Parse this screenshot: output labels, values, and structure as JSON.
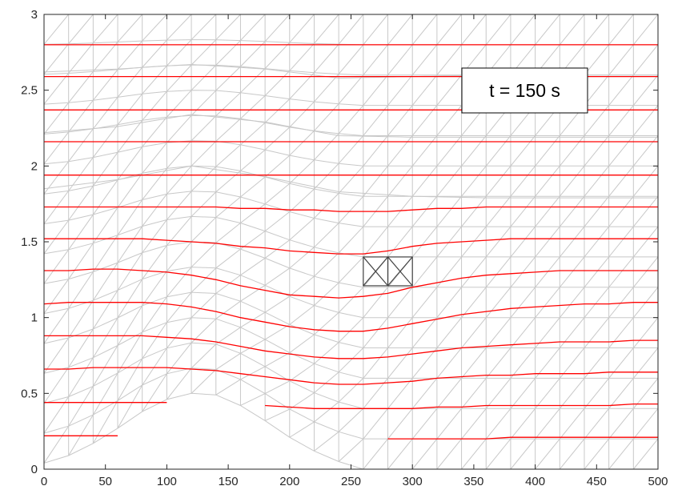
{
  "chart_data": {
    "type": "line",
    "title": "",
    "xlabel": "",
    "ylabel": "",
    "xlim": [
      0,
      500
    ],
    "ylim": [
      0,
      3
    ],
    "x_ticks": [
      0,
      50,
      100,
      150,
      200,
      250,
      300,
      350,
      400,
      450,
      500
    ],
    "y_ticks": [
      0,
      0.5,
      1,
      1.5,
      2,
      2.5,
      3
    ],
    "x_tick_labels": [
      "0",
      "50",
      "100",
      "150",
      "200",
      "250",
      "300",
      "350",
      "400",
      "450",
      "500"
    ],
    "y_tick_labels": [
      "0",
      "0.5",
      "1",
      "1.5",
      "2",
      "2.5",
      "3"
    ],
    "annotation": "t = 150 s",
    "mesh": {
      "color": "#c8c8c8",
      "column_spacing": 20,
      "rows": 15,
      "column_x_values": [
        0,
        20,
        40,
        60,
        80,
        100,
        120,
        140,
        160,
        180,
        200,
        220,
        240,
        260,
        280,
        300,
        320,
        340,
        360,
        380,
        400,
        420,
        440,
        460,
        480,
        500
      ],
      "top": 3,
      "bed_profile": {
        "x": [
          0,
          20,
          40,
          60,
          80,
          100,
          120,
          140,
          160,
          180,
          200,
          220,
          240,
          260,
          280,
          300,
          320,
          340,
          360,
          380,
          400,
          420,
          440,
          460,
          480,
          500
        ],
        "y": [
          0.04,
          0.09,
          0.17,
          0.27,
          0.38,
          0.46,
          0.5,
          0.49,
          0.42,
          0.32,
          0.21,
          0.12,
          0.05,
          0,
          0,
          0,
          0,
          0,
          0,
          0,
          0,
          0,
          0,
          0,
          0,
          0
        ]
      },
      "surface_profiles": [
        {
          "x": [
            0,
            60,
            120,
            180,
            240,
            300,
            360,
            420,
            500
          ],
          "y": [
            2.62,
            2.64,
            2.67,
            2.64,
            2.58,
            2.59,
            2.6,
            2.6,
            2.6
          ]
        },
        {
          "x": [
            0,
            60,
            120,
            180,
            240,
            300,
            360,
            420,
            500
          ],
          "y": [
            2.22,
            2.26,
            2.34,
            2.29,
            2.2,
            2.19,
            2.19,
            2.19,
            2.19
          ]
        },
        {
          "x": [
            0,
            60,
            120,
            180,
            240,
            300,
            360,
            420,
            500
          ],
          "y": [
            1.85,
            1.91,
            2.0,
            1.93,
            1.83,
            1.8,
            1.79,
            1.79,
            1.79
          ]
        }
      ]
    },
    "series": [
      {
        "color": "#ff0000",
        "x": [
          0,
          20,
          40,
          60,
          80,
          100,
          120,
          140,
          160,
          180,
          200,
          220,
          240,
          260,
          280,
          300,
          320,
          340,
          360,
          380,
          400,
          420,
          440,
          460,
          480,
          500
        ],
        "y": [
          0.22,
          0.22,
          0.22,
          0.22,
          null,
          null,
          null,
          null,
          null,
          null,
          null,
          null,
          null,
          null,
          0.2,
          0.2,
          0.2,
          0.2,
          0.2,
          0.21,
          0.21,
          0.21,
          0.21,
          0.21,
          0.21,
          0.21
        ]
      },
      {
        "color": "#ff0000",
        "x": [
          0,
          20,
          40,
          60,
          80,
          100,
          120,
          140,
          160,
          180,
          200,
          220,
          240,
          260,
          280,
          300,
          320,
          340,
          360,
          380,
          400,
          420,
          440,
          460,
          480,
          500
        ],
        "y": [
          0.44,
          0.44,
          0.44,
          0.44,
          0.44,
          0.44,
          null,
          null,
          null,
          0.42,
          0.41,
          0.4,
          0.4,
          0.4,
          0.4,
          0.4,
          0.41,
          0.41,
          0.42,
          0.42,
          0.42,
          0.42,
          0.42,
          0.42,
          0.43,
          0.43
        ]
      },
      {
        "color": "#ff0000",
        "x": [
          0,
          20,
          40,
          60,
          80,
          100,
          120,
          140,
          160,
          180,
          200,
          220,
          240,
          260,
          280,
          300,
          320,
          340,
          360,
          380,
          400,
          420,
          440,
          460,
          480,
          500
        ],
        "y": [
          0.66,
          0.66,
          0.67,
          0.67,
          0.67,
          0.67,
          0.66,
          0.65,
          0.63,
          0.61,
          0.59,
          0.57,
          0.56,
          0.56,
          0.57,
          0.58,
          0.6,
          0.61,
          0.62,
          0.62,
          0.63,
          0.63,
          0.63,
          0.64,
          0.64,
          0.64
        ]
      },
      {
        "color": "#ff0000",
        "x": [
          0,
          20,
          40,
          60,
          80,
          100,
          120,
          140,
          160,
          180,
          200,
          220,
          240,
          260,
          280,
          300,
          320,
          340,
          360,
          380,
          400,
          420,
          440,
          460,
          480,
          500
        ],
        "y": [
          0.88,
          0.88,
          0.88,
          0.88,
          0.88,
          0.87,
          0.86,
          0.84,
          0.81,
          0.78,
          0.76,
          0.74,
          0.73,
          0.73,
          0.74,
          0.76,
          0.78,
          0.8,
          0.81,
          0.82,
          0.83,
          0.84,
          0.84,
          0.84,
          0.85,
          0.85
        ]
      },
      {
        "color": "#ff0000",
        "x": [
          0,
          20,
          40,
          60,
          80,
          100,
          120,
          140,
          160,
          180,
          200,
          220,
          240,
          260,
          280,
          300,
          320,
          340,
          360,
          380,
          400,
          420,
          440,
          460,
          480,
          500
        ],
        "y": [
          1.09,
          1.1,
          1.1,
          1.1,
          1.1,
          1.09,
          1.07,
          1.04,
          1.0,
          0.97,
          0.94,
          0.92,
          0.91,
          0.91,
          0.93,
          0.96,
          0.99,
          1.02,
          1.04,
          1.06,
          1.07,
          1.08,
          1.09,
          1.09,
          1.1,
          1.1
        ]
      },
      {
        "color": "#ff0000",
        "x": [
          0,
          20,
          40,
          60,
          80,
          100,
          120,
          140,
          160,
          180,
          200,
          220,
          240,
          260,
          280,
          300,
          320,
          340,
          360,
          380,
          400,
          420,
          440,
          460,
          480,
          500
        ],
        "y": [
          1.31,
          1.31,
          1.32,
          1.32,
          1.31,
          1.3,
          1.28,
          1.25,
          1.21,
          1.18,
          1.15,
          1.14,
          1.13,
          1.14,
          1.16,
          1.2,
          1.23,
          1.26,
          1.28,
          1.29,
          1.3,
          1.31,
          1.31,
          1.31,
          1.31,
          1.31
        ]
      },
      {
        "color": "#ff0000",
        "x": [
          0,
          20,
          40,
          60,
          80,
          100,
          120,
          140,
          160,
          180,
          200,
          220,
          240,
          260,
          280,
          300,
          320,
          340,
          360,
          380,
          400,
          420,
          440,
          460,
          480,
          500
        ],
        "y": [
          1.52,
          1.52,
          1.52,
          1.52,
          1.52,
          1.51,
          1.5,
          1.49,
          1.47,
          1.46,
          1.44,
          1.43,
          1.42,
          1.42,
          1.44,
          1.47,
          1.49,
          1.5,
          1.51,
          1.52,
          1.52,
          1.52,
          1.52,
          1.52,
          1.52,
          1.52
        ]
      },
      {
        "color": "#ff0000",
        "x": [
          0,
          20,
          40,
          60,
          80,
          100,
          120,
          140,
          160,
          180,
          200,
          220,
          240,
          260,
          280,
          300,
          320,
          340,
          360,
          380,
          400,
          420,
          440,
          460,
          480,
          500
        ],
        "y": [
          1.73,
          1.73,
          1.73,
          1.73,
          1.73,
          1.73,
          1.73,
          1.73,
          1.72,
          1.72,
          1.71,
          1.71,
          1.7,
          1.7,
          1.7,
          1.71,
          1.72,
          1.72,
          1.73,
          1.73,
          1.73,
          1.73,
          1.73,
          1.73,
          1.73,
          1.73
        ]
      },
      {
        "color": "#ff0000",
        "x": [
          0,
          500
        ],
        "y": [
          1.94,
          1.94
        ]
      },
      {
        "color": "#ff0000",
        "x": [
          0,
          500
        ],
        "y": [
          2.16,
          2.16
        ]
      },
      {
        "color": "#ff0000",
        "x": [
          0,
          500
        ],
        "y": [
          2.37,
          2.37
        ]
      },
      {
        "color": "#ff0000",
        "x": [
          0,
          500
        ],
        "y": [
          2.59,
          2.59
        ]
      },
      {
        "color": "#ff0000",
        "x": [
          0,
          500
        ],
        "y": [
          2.8,
          2.8
        ]
      }
    ],
    "markers": [
      {
        "shape": "crossed-box",
        "x": [
          260,
          280
        ],
        "y": [
          1.21,
          1.4
        ],
        "color": "#444444"
      },
      {
        "shape": "crossed-box",
        "x": [
          280,
          300
        ],
        "y": [
          1.21,
          1.4
        ],
        "color": "#444444"
      }
    ],
    "grid": false,
    "legend": "none"
  }
}
